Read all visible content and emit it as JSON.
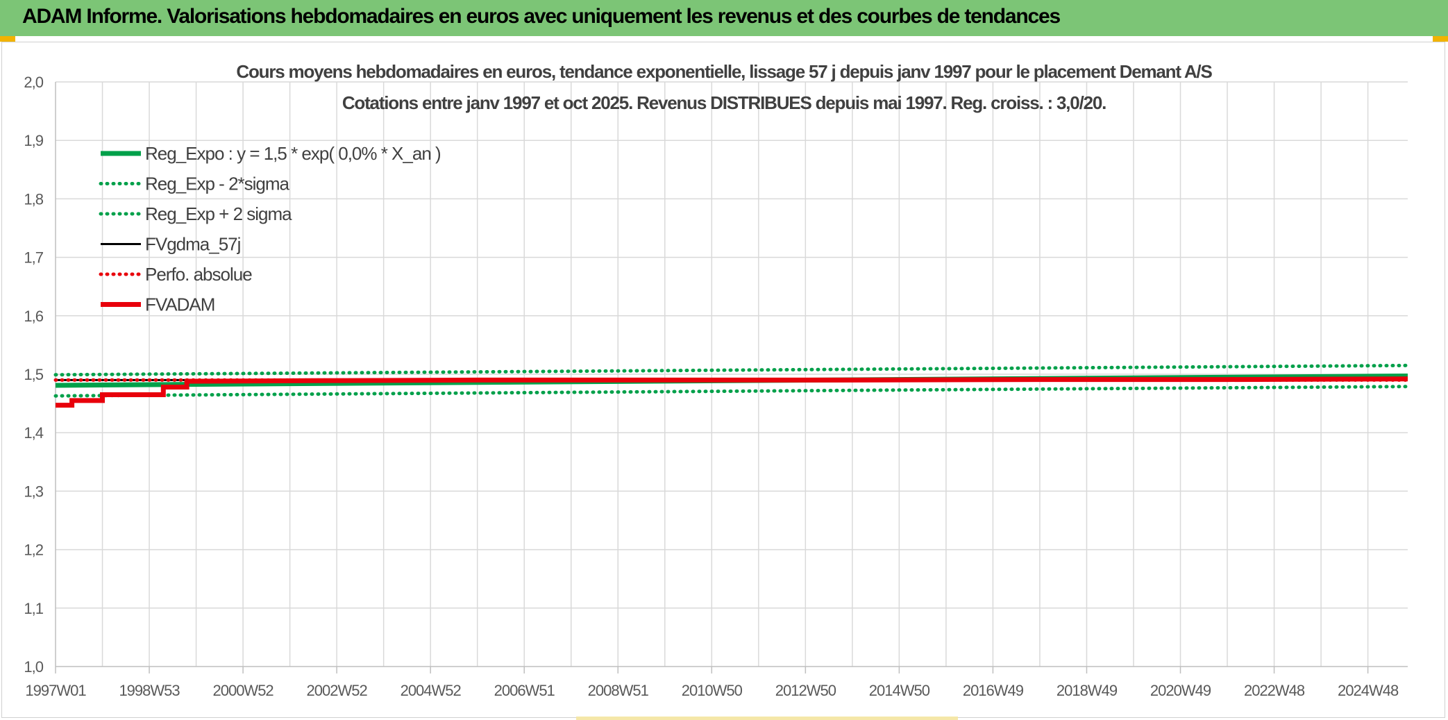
{
  "page": {
    "title": "ADAM Informe. Valorisations hebdomadaires en euros avec uniquement les revenus et des courbes de tendances"
  },
  "colors": {
    "banner": "#7cc576",
    "accent_band": "#f2b300",
    "trend_green": "#00a04a",
    "adam_red": "#e8000b",
    "gdma_black": "#000000",
    "grid": "#d9d9d9",
    "text": "#404040"
  },
  "chart_data": {
    "type": "line",
    "title": "Cours moyens hebdomadaires en euros, tendance exponentielle, lissage 57 j depuis janv 1997 pour le placement Demant A/S",
    "subtitle": "Cotations entre janv 1997 et oct 2025. Revenus DISTRIBUES depuis mai 1997. Reg. croiss. : 3,0/20.",
    "xlabel": "",
    "ylabel": "",
    "ylim": [
      1.0,
      2.0
    ],
    "yticks": [
      "1,0",
      "1,1",
      "1,2",
      "1,3",
      "1,4",
      "1,5",
      "1,6",
      "1,7",
      "1,8",
      "1,9",
      "2,0"
    ],
    "x_tick_labels": [
      "1997W01",
      "1998W53",
      "2000W52",
      "2002W52",
      "2004W52",
      "2006W51",
      "2008W51",
      "2010W50",
      "2012W50",
      "2014W50",
      "2016W49",
      "2018W49",
      "2020W49",
      "2022W48",
      "2024W48"
    ],
    "x_range_years": [
      1997.0,
      2025.85
    ],
    "grid": true,
    "legend_position": "top-left",
    "series": [
      {
        "name": "Reg_Expo : y = 1,5 * exp( 0,0% *  X_an )",
        "style": "solid-thick",
        "color": "#00a04a",
        "x": [
          1997.0,
          2025.85
        ],
        "y": [
          1.481,
          1.497
        ]
      },
      {
        "name": "Reg_Exp - 2*sigma",
        "style": "dotted",
        "color": "#00a04a",
        "x": [
          1997.0,
          2025.85
        ],
        "y": [
          1.463,
          1.479
        ]
      },
      {
        "name": "Reg_Exp + 2 sigma",
        "style": "dotted",
        "color": "#00a04a",
        "x": [
          1997.0,
          2025.85
        ],
        "y": [
          1.499,
          1.515
        ]
      },
      {
        "name": "FVgdma_57j",
        "style": "solid-thin",
        "color": "#000000",
        "x": [
          1997.0,
          2025.85
        ],
        "y": [
          1.49,
          1.49
        ]
      },
      {
        "name": "Perfo. absolue",
        "style": "dotted",
        "color": "#e8000b",
        "x": [
          1997.0,
          2025.85
        ],
        "y": [
          1.49,
          1.49
        ]
      },
      {
        "name": "FVADAM",
        "style": "solid-thick",
        "color": "#e8000b",
        "x": [
          1997.0,
          1997.35,
          1997.35,
          1998.0,
          1998.0,
          1999.3,
          1999.3,
          1999.8,
          1999.8,
          2002.5,
          2006.0,
          2010.0,
          2014.0,
          2018.0,
          2022.0,
          2025.85
        ],
        "y": [
          1.447,
          1.447,
          1.455,
          1.455,
          1.465,
          1.465,
          1.478,
          1.478,
          1.488,
          1.489,
          1.49,
          1.49,
          1.49,
          1.491,
          1.491,
          1.492
        ]
      }
    ]
  }
}
